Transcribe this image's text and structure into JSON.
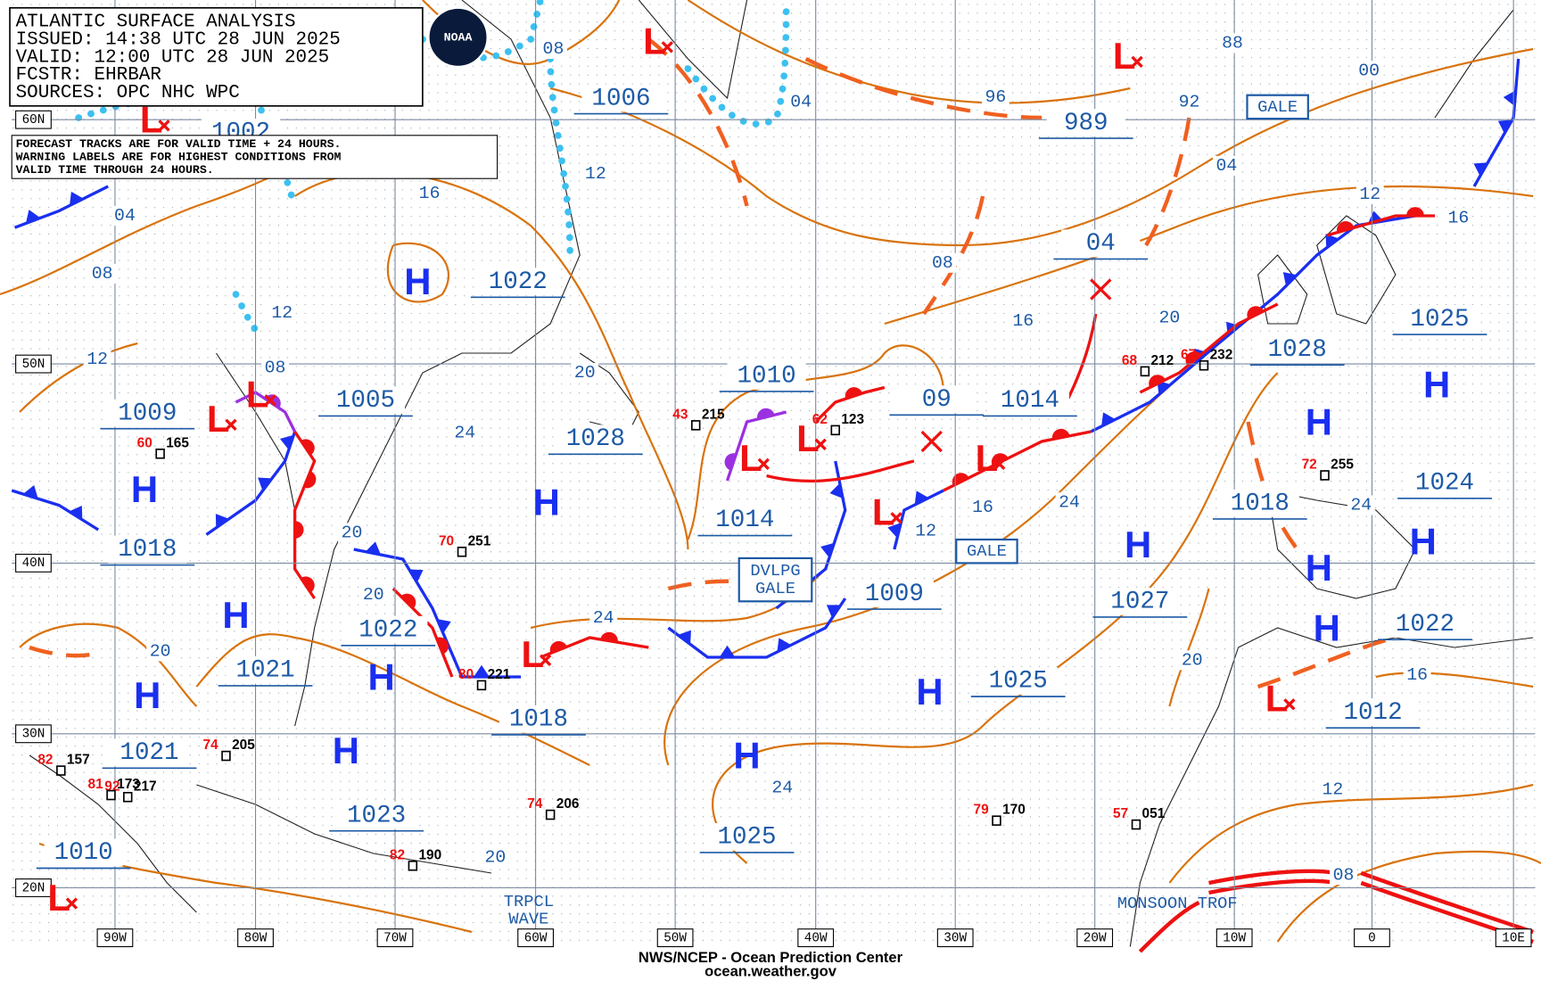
{
  "header": {
    "lines": [
      "ATLANTIC SURFACE ANALYSIS",
      "ISSUED: 14:38 UTC 28 JUN 2025",
      "VALID:  12:00 UTC 28 JUN 2025",
      "FCSTR:  EHRBAR",
      "SOURCES: OPC NHC WPC"
    ],
    "logo": "NOAA"
  },
  "note": {
    "lines": [
      "FORECAST TRACKS ARE FOR VALID TIME + 24 HOURS.",
      "WARNING LABELS ARE FOR HIGHEST CONDITIONS FROM",
      "VALID TIME THROUGH 24 HOURS."
    ]
  },
  "latitude_labels": [
    "60N",
    "50N",
    "40N",
    "30N",
    "20N"
  ],
  "longitude_labels": [
    "90W",
    "80W",
    "70W",
    "60W",
    "50W",
    "40W",
    "30W",
    "20W",
    "10W",
    "0",
    "10E"
  ],
  "centers": [
    {
      "symbol": "L",
      "pressure": "1002"
    },
    {
      "symbol": "L",
      "pressure": "1006"
    },
    {
      "symbol": "H",
      "pressure": "1022"
    },
    {
      "symbol": "L",
      "pressure": "1005"
    },
    {
      "symbol": "L",
      "pressure": "1009"
    },
    {
      "symbol": "H",
      "pressure": "1018"
    },
    {
      "symbol": "H",
      "pressure": "1028"
    },
    {
      "symbol": "L",
      "pressure": "1010"
    },
    {
      "symbol": "L",
      "pressure": "1014"
    },
    {
      "symbol": "L",
      "pressure": "1009"
    },
    {
      "symbol": "L",
      "pressure": "1014"
    },
    {
      "symbol": "L",
      "pressure": "989"
    },
    {
      "symbol": "H",
      "pressure": "1028"
    },
    {
      "symbol": "H",
      "pressure": "1025"
    },
    {
      "symbol": "H",
      "pressure": "1024"
    },
    {
      "symbol": "H",
      "pressure": "1027"
    },
    {
      "symbol": "H",
      "pressure": "1018"
    },
    {
      "symbol": "H",
      "pressure": "1022"
    },
    {
      "symbol": "L",
      "pressure": "1012"
    },
    {
      "symbol": "H",
      "pressure": "1025"
    },
    {
      "symbol": "H",
      "pressure": "1025"
    },
    {
      "symbol": "H",
      "pressure": "1022"
    },
    {
      "symbol": "H",
      "pressure": "1021"
    },
    {
      "symbol": "H",
      "pressure": "1021"
    },
    {
      "symbol": "H",
      "pressure": "1023"
    },
    {
      "symbol": "L",
      "pressure": "1010"
    },
    {
      "symbol": "L",
      "pressure": "1018"
    }
  ],
  "forecast_positions": [
    "04",
    "09"
  ],
  "isobar_labels": [
    "08",
    "04",
    "12",
    "16",
    "04",
    "08",
    "12",
    "08",
    "12",
    "20",
    "24",
    "20",
    "20",
    "24",
    "20",
    "96",
    "92",
    "88",
    "00",
    "04",
    "12",
    "16",
    "08",
    "16",
    "20",
    "16",
    "12",
    "24",
    "24",
    "20",
    "16",
    "24",
    "12",
    "08",
    "20"
  ],
  "warnings": [
    "GALE",
    "GALE",
    "DVLPG\nGALE"
  ],
  "features": [
    "MONSOON TROF",
    "TRPCL\nWAVE"
  ],
  "stations": [
    {
      "temp": "60",
      "pressure": "165"
    },
    {
      "temp": "70",
      "pressure": "251"
    },
    {
      "temp": "43",
      "pressure": "215"
    },
    {
      "temp": "62",
      "pressure": "123"
    },
    {
      "temp": "68",
      "pressure": "212"
    },
    {
      "temp": "67",
      "pressure": "232"
    },
    {
      "temp": "72",
      "pressure": "255"
    },
    {
      "temp": "80",
      "pressure": "221"
    },
    {
      "temp": "74",
      "pressure": "205"
    },
    {
      "temp": "82",
      "pressure": "157"
    },
    {
      "temp": "92",
      "pressure": "217"
    },
    {
      "temp": "74",
      "pressure": "206"
    },
    {
      "temp": "79",
      "pressure": "170"
    },
    {
      "temp": "57",
      "pressure": "051"
    },
    {
      "temp": "81",
      "pressure": "173"
    },
    {
      "temp": "82",
      "pressure": "190"
    }
  ],
  "footer": {
    "lines": [
      "NWS/NCEP - Ocean Prediction Center",
      "ocean.weather.gov"
    ]
  }
}
